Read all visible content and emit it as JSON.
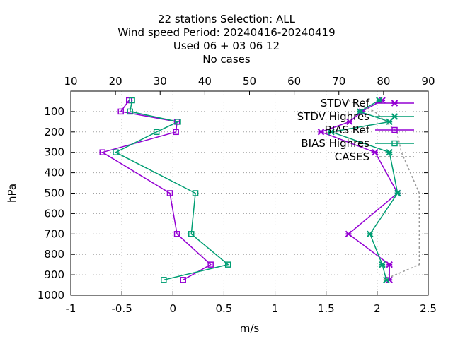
{
  "title_lines": [
    "22 stations Selection: ALL",
    "Wind speed  Period: 20240416-20240419",
    "Used  06 + 03 06 12",
    "No cases"
  ],
  "chart_data": {
    "type": "line",
    "xlabel": "m/s",
    "ylabel": "hPa",
    "xlim": [
      -1,
      2.5
    ],
    "ylim": [
      1000,
      0
    ],
    "x2lim": [
      10,
      90
    ],
    "x_ticks": [
      "-1",
      "-0.5",
      "0",
      "0.5",
      "1",
      "1.5",
      "2",
      "2.5"
    ],
    "x2_ticks": [
      "10",
      "20",
      "30",
      "40",
      "50",
      "60",
      "70",
      "80",
      "90"
    ],
    "y_ticks": [
      "100",
      "200",
      "300",
      "400",
      "500",
      "600",
      "700",
      "800",
      "900",
      "1000"
    ],
    "grid": true,
    "legend_position": "top-right",
    "series": [
      {
        "name": "STDV Ref",
        "color": "#9400d3",
        "marker": "x-star",
        "axis": "x1",
        "points": [
          [
            2.05,
            45
          ],
          [
            1.85,
            100
          ],
          [
            1.73,
            150
          ],
          [
            1.45,
            200
          ],
          [
            1.98,
            300
          ],
          [
            2.2,
            500
          ],
          [
            1.72,
            700
          ],
          [
            2.12,
            850
          ],
          [
            2.12,
            925
          ]
        ]
      },
      {
        "name": "STDV Highres",
        "color": "#009e73",
        "marker": "x-star",
        "axis": "x1",
        "points": [
          [
            2.02,
            45
          ],
          [
            1.83,
            100
          ],
          [
            2.12,
            150
          ],
          [
            1.55,
            200
          ],
          [
            2.12,
            300
          ],
          [
            2.2,
            500
          ],
          [
            1.93,
            700
          ],
          [
            2.05,
            850
          ],
          [
            2.09,
            925
          ]
        ]
      },
      {
        "name": "BIAS Ref",
        "color": "#9400d3",
        "marker": "square",
        "axis": "x1",
        "points": [
          [
            -0.43,
            45
          ],
          [
            -0.51,
            100
          ],
          [
            0.04,
            150
          ],
          [
            0.03,
            200
          ],
          [
            -0.69,
            300
          ],
          [
            -0.03,
            500
          ],
          [
            0.04,
            700
          ],
          [
            0.37,
            850
          ],
          [
            0.1,
            925
          ]
        ]
      },
      {
        "name": "BIAS Highres",
        "color": "#009e73",
        "marker": "square",
        "axis": "x1",
        "points": [
          [
            -0.4,
            45
          ],
          [
            -0.42,
            100
          ],
          [
            0.05,
            150
          ],
          [
            -0.16,
            200
          ],
          [
            -0.56,
            300
          ],
          [
            0.22,
            500
          ],
          [
            0.18,
            700
          ],
          [
            0.54,
            850
          ],
          [
            -0.09,
            925
          ]
        ]
      },
      {
        "name": "CASES",
        "color": "#999999",
        "marker": "none",
        "dashed": true,
        "axis": "x2",
        "points": [
          [
            72,
            45
          ],
          [
            78,
            100
          ],
          [
            83,
            200
          ],
          [
            84,
            300
          ],
          [
            88,
            500
          ],
          [
            88,
            700
          ],
          [
            88,
            850
          ],
          [
            80,
            925
          ]
        ]
      }
    ]
  }
}
